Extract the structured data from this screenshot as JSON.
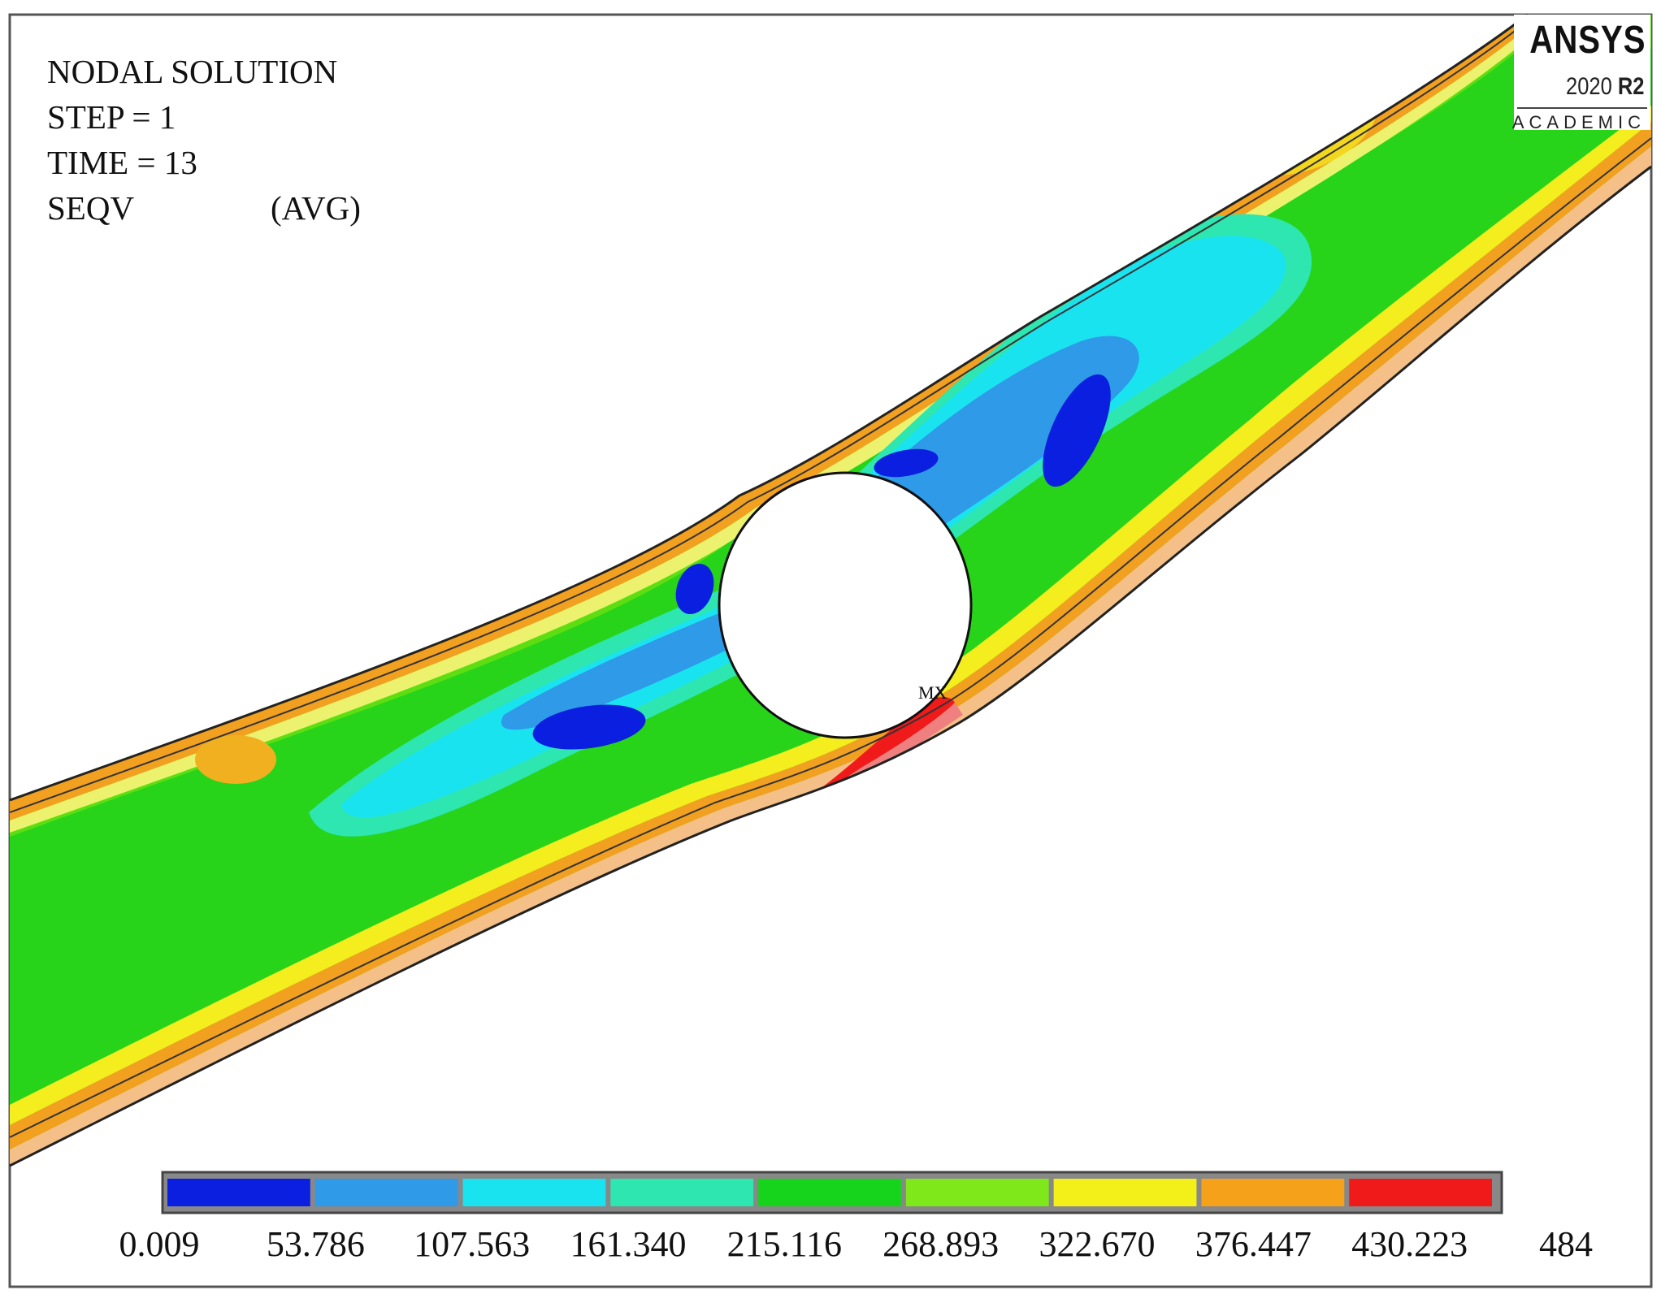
{
  "header": {
    "line1": "NODAL SOLUTION",
    "line2": "STEP = 1",
    "line3": "TIME = 13",
    "line4a": "SEQV",
    "line4b": "(AVG)"
  },
  "logo": {
    "name": "ANSYS",
    "version": "2020",
    "release": "R2",
    "edition": "ACADEMIC"
  },
  "max_marker": "MX",
  "legend": {
    "labels": [
      "0.009",
      "53.786",
      "107.563",
      "161.340",
      "215.116",
      "268.893",
      "322.670",
      "376.447",
      "430.223",
      "484"
    ],
    "colors": [
      "#0a1fe0",
      "#2f9ae8",
      "#1ae3f0",
      "#2ee6b0",
      "#16d41c",
      "#7fe81a",
      "#f2f018",
      "#f5a11a",
      "#f01a1a"
    ]
  }
}
